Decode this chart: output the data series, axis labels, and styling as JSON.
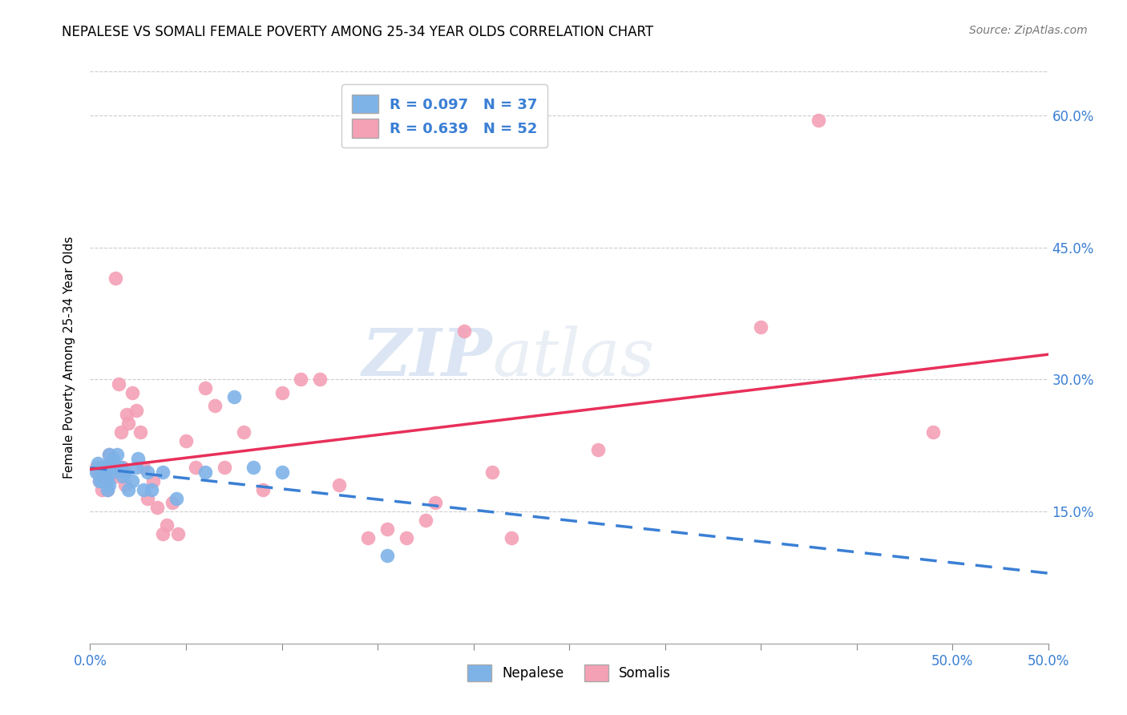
{
  "title": "NEPALESE VS SOMALI FEMALE POVERTY AMONG 25-34 YEAR OLDS CORRELATION CHART",
  "source": "Source: ZipAtlas.com",
  "ylabel": "Female Poverty Among 25-34 Year Olds",
  "xlim": [
    0.0,
    0.5
  ],
  "ylim": [
    0.0,
    0.65
  ],
  "xticks": [
    0.0,
    0.05,
    0.1,
    0.15,
    0.2,
    0.25,
    0.3,
    0.35,
    0.4,
    0.45,
    0.5
  ],
  "xtick_labels_shown": {
    "0.0": "0.0%",
    "0.5": "50.0%"
  },
  "yticks_right": [
    0.15,
    0.3,
    0.45,
    0.6
  ],
  "ytick_labels_right": [
    "15.0%",
    "30.0%",
    "45.0%",
    "60.0%"
  ],
  "nepalese_color": "#7eb3e8",
  "somali_color": "#f4a0b5",
  "nepalese_R": 0.097,
  "nepalese_N": 37,
  "somali_R": 0.639,
  "somali_N": 52,
  "nepalese_line_color": "#3a7fd4",
  "somali_line_color": "#e8305a",
  "watermark_zip": "ZIP",
  "watermark_atlas": "atlas",
  "legend_label_nepalese": "Nepalese",
  "legend_label_somali": "Somalis",
  "nepalese_x": [
    0.003,
    0.004,
    0.005,
    0.005,
    0.006,
    0.006,
    0.007,
    0.007,
    0.008,
    0.008,
    0.009,
    0.009,
    0.01,
    0.01,
    0.01,
    0.011,
    0.012,
    0.013,
    0.014,
    0.015,
    0.016,
    0.017,
    0.018,
    0.02,
    0.022,
    0.024,
    0.025,
    0.028,
    0.03,
    0.032,
    0.038,
    0.045,
    0.06,
    0.075,
    0.085,
    0.1,
    0.155
  ],
  "nepalese_y": [
    0.195,
    0.205,
    0.185,
    0.2,
    0.195,
    0.185,
    0.2,
    0.19,
    0.2,
    0.195,
    0.185,
    0.175,
    0.215,
    0.205,
    0.18,
    0.195,
    0.21,
    0.2,
    0.215,
    0.2,
    0.2,
    0.19,
    0.195,
    0.175,
    0.185,
    0.2,
    0.21,
    0.175,
    0.195,
    0.175,
    0.195,
    0.165,
    0.195,
    0.28,
    0.2,
    0.195,
    0.1
  ],
  "somali_x": [
    0.003,
    0.004,
    0.005,
    0.006,
    0.007,
    0.008,
    0.009,
    0.01,
    0.011,
    0.012,
    0.013,
    0.014,
    0.015,
    0.016,
    0.017,
    0.018,
    0.019,
    0.02,
    0.022,
    0.024,
    0.026,
    0.028,
    0.03,
    0.033,
    0.035,
    0.038,
    0.04,
    0.043,
    0.046,
    0.05,
    0.055,
    0.06,
    0.065,
    0.07,
    0.08,
    0.09,
    0.1,
    0.11,
    0.12,
    0.13,
    0.145,
    0.155,
    0.165,
    0.175,
    0.18,
    0.195,
    0.21,
    0.22,
    0.265,
    0.35,
    0.38,
    0.44
  ],
  "somali_y": [
    0.2,
    0.195,
    0.185,
    0.175,
    0.2,
    0.195,
    0.175,
    0.215,
    0.205,
    0.195,
    0.415,
    0.19,
    0.295,
    0.24,
    0.2,
    0.18,
    0.26,
    0.25,
    0.285,
    0.265,
    0.24,
    0.2,
    0.165,
    0.185,
    0.155,
    0.125,
    0.135,
    0.16,
    0.125,
    0.23,
    0.2,
    0.29,
    0.27,
    0.2,
    0.24,
    0.175,
    0.285,
    0.3,
    0.3,
    0.18,
    0.12,
    0.13,
    0.12,
    0.14,
    0.16,
    0.355,
    0.195,
    0.12,
    0.22,
    0.36,
    0.595,
    0.24
  ]
}
